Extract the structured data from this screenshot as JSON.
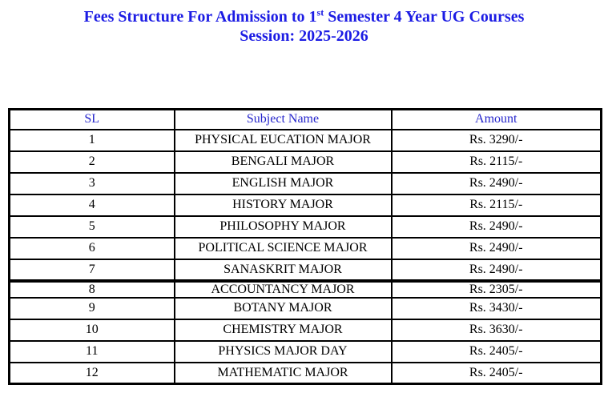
{
  "page": {
    "title_part1": "Fees Structure For Admission to 1",
    "title_sup": "st",
    "title_part2": " Semester 4 Year UG Courses",
    "subtitle": "Session: 2025-2026"
  },
  "colors": {
    "title-color": "#1c1ce4",
    "header-color": "#2626cc",
    "text-color": "#000000",
    "border-color": "#000000"
  },
  "table": {
    "headers": [
      "SL",
      "Subject Name",
      "Amount"
    ],
    "rows": [
      {
        "sl": "1",
        "subject": "PHYSICAL EUCATION MAJOR",
        "amount": "Rs. 3290/-"
      },
      {
        "sl": "2",
        "subject": "BENGALI MAJOR",
        "amount": "Rs. 2115/-"
      },
      {
        "sl": "3",
        "subject": "ENGLISH MAJOR",
        "amount": "Rs. 2490/-"
      },
      {
        "sl": "4",
        "subject": "HISTORY MAJOR",
        "amount": "Rs. 2115/-"
      },
      {
        "sl": "5",
        "subject": "PHILOSOPHY MAJOR",
        "amount": "Rs. 2490/-"
      },
      {
        "sl": "6",
        "subject": "POLITICAL SCIENCE MAJOR",
        "amount": "Rs. 2490/-"
      },
      {
        "sl": "7",
        "subject": "SANASKRIT MAJOR",
        "amount": "Rs. 2490/-"
      },
      {
        "sl": "8",
        "subject": "ACCOUNTANCY MAJOR",
        "amount": "Rs. 2305/-"
      },
      {
        "sl": "9",
        "subject": "BOTANY MAJOR",
        "amount": "Rs. 3430/-"
      },
      {
        "sl": "10",
        "subject": "CHEMISTRY MAJOR",
        "amount": "Rs. 3630/-"
      },
      {
        "sl": "11",
        "subject": "PHYSICS MAJOR DAY",
        "amount": "Rs. 2405/-"
      },
      {
        "sl": "12",
        "subject": "MATHEMATIC MAJOR",
        "amount": "Rs. 2405/-"
      }
    ]
  }
}
